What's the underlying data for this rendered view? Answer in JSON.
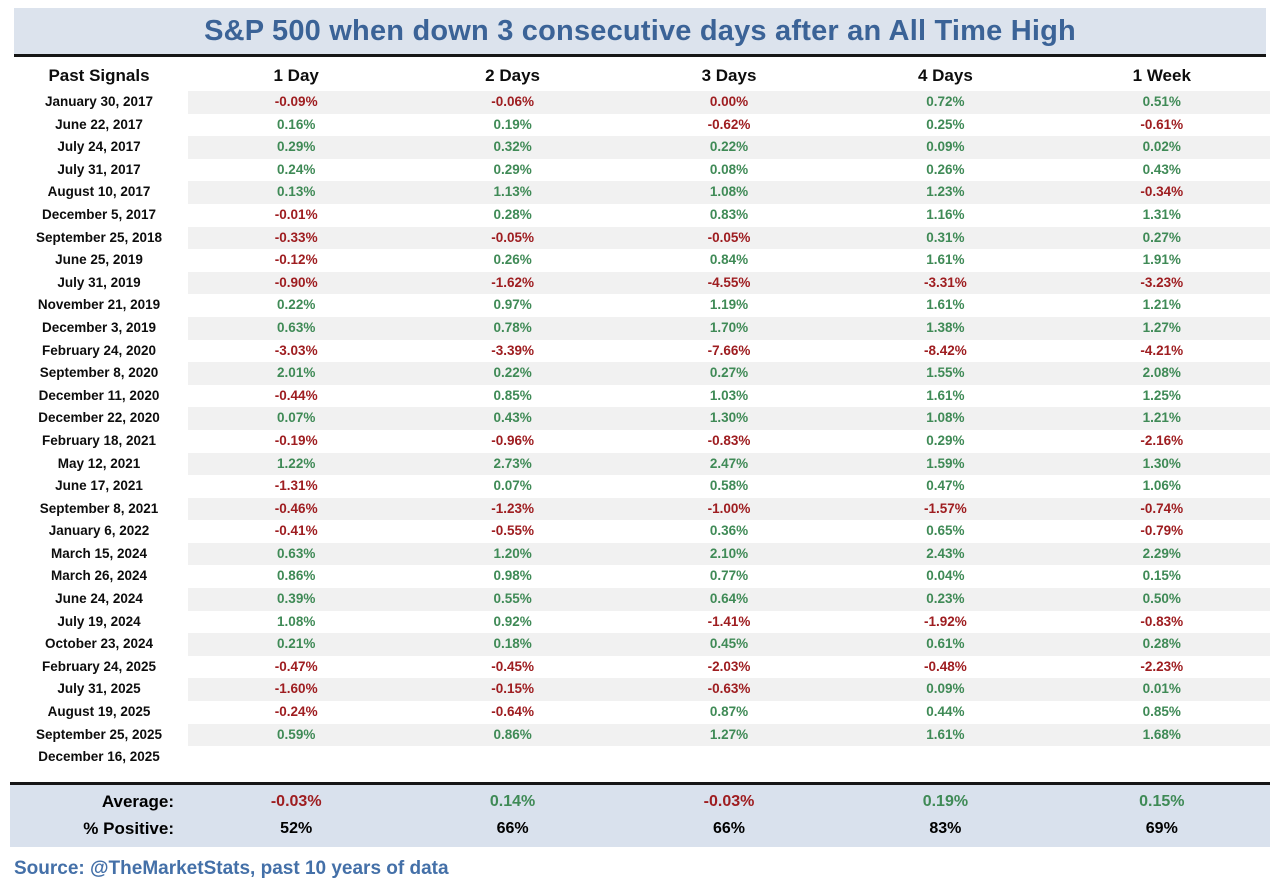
{
  "title": "S&P 500 when down 3 consecutive days after an All Time High",
  "source": "Source: @TheMarketStats, past 10 years of data",
  "colors": {
    "title_text": "#3b6397",
    "title_bg": "#dce3ed",
    "positive_green": "#3f8a56",
    "negative_red": "#9e1d20",
    "row_stripe": "#f1f1f1",
    "summary_bg": "#d9e1ed",
    "source_blue": "#4470a8"
  },
  "chart_data": {
    "type": "table",
    "columns": [
      "Past Signals",
      "1 Day",
      "2 Days",
      "3 Days",
      "4 Days",
      "1 Week"
    ],
    "rows": [
      {
        "date": "January 30, 2017",
        "values": [
          "-0.09%",
          "-0.06%",
          "0.00%",
          "0.72%",
          "0.51%"
        ]
      },
      {
        "date": "June 22, 2017",
        "values": [
          "0.16%",
          "0.19%",
          "-0.62%",
          "0.25%",
          "-0.61%"
        ]
      },
      {
        "date": "July 24, 2017",
        "values": [
          "0.29%",
          "0.32%",
          "0.22%",
          "0.09%",
          "0.02%"
        ]
      },
      {
        "date": "July 31, 2017",
        "values": [
          "0.24%",
          "0.29%",
          "0.08%",
          "0.26%",
          "0.43%"
        ]
      },
      {
        "date": "August 10, 2017",
        "values": [
          "0.13%",
          "1.13%",
          "1.08%",
          "1.23%",
          "-0.34%"
        ]
      },
      {
        "date": "December 5, 2017",
        "values": [
          "-0.01%",
          "0.28%",
          "0.83%",
          "1.16%",
          "1.31%"
        ]
      },
      {
        "date": "September 25, 2018",
        "values": [
          "-0.33%",
          "-0.05%",
          "-0.05%",
          "0.31%",
          "0.27%"
        ]
      },
      {
        "date": "June 25, 2019",
        "values": [
          "-0.12%",
          "0.26%",
          "0.84%",
          "1.61%",
          "1.91%"
        ]
      },
      {
        "date": "July 31, 2019",
        "values": [
          "-0.90%",
          "-1.62%",
          "-4.55%",
          "-3.31%",
          "-3.23%"
        ]
      },
      {
        "date": "November 21, 2019",
        "values": [
          "0.22%",
          "0.97%",
          "1.19%",
          "1.61%",
          "1.21%"
        ]
      },
      {
        "date": "December 3, 2019",
        "values": [
          "0.63%",
          "0.78%",
          "1.70%",
          "1.38%",
          "1.27%"
        ]
      },
      {
        "date": "February 24, 2020",
        "values": [
          "-3.03%",
          "-3.39%",
          "-7.66%",
          "-8.42%",
          "-4.21%"
        ]
      },
      {
        "date": "September 8, 2020",
        "values": [
          "2.01%",
          "0.22%",
          "0.27%",
          "1.55%",
          "2.08%"
        ]
      },
      {
        "date": "December 11, 2020",
        "values": [
          "-0.44%",
          "0.85%",
          "1.03%",
          "1.61%",
          "1.25%"
        ]
      },
      {
        "date": "December 22, 2020",
        "values": [
          "0.07%",
          "0.43%",
          "1.30%",
          "1.08%",
          "1.21%"
        ]
      },
      {
        "date": "February 18, 2021",
        "values": [
          "-0.19%",
          "-0.96%",
          "-0.83%",
          "0.29%",
          "-2.16%"
        ]
      },
      {
        "date": "May 12, 2021",
        "values": [
          "1.22%",
          "2.73%",
          "2.47%",
          "1.59%",
          "1.30%"
        ]
      },
      {
        "date": "June 17, 2021",
        "values": [
          "-1.31%",
          "0.07%",
          "0.58%",
          "0.47%",
          "1.06%"
        ]
      },
      {
        "date": "September 8, 2021",
        "values": [
          "-0.46%",
          "-1.23%",
          "-1.00%",
          "-1.57%",
          "-0.74%"
        ]
      },
      {
        "date": "January 6, 2022",
        "values": [
          "-0.41%",
          "-0.55%",
          "0.36%",
          "0.65%",
          "-0.79%"
        ]
      },
      {
        "date": "March 15, 2024",
        "values": [
          "0.63%",
          "1.20%",
          "2.10%",
          "2.43%",
          "2.29%"
        ]
      },
      {
        "date": "March 26, 2024",
        "values": [
          "0.86%",
          "0.98%",
          "0.77%",
          "0.04%",
          "0.15%"
        ]
      },
      {
        "date": "June 24, 2024",
        "values": [
          "0.39%",
          "0.55%",
          "0.64%",
          "0.23%",
          "0.50%"
        ]
      },
      {
        "date": "July 19, 2024",
        "values": [
          "1.08%",
          "0.92%",
          "-1.41%",
          "-1.92%",
          "-0.83%"
        ]
      },
      {
        "date": "October 23, 2024",
        "values": [
          "0.21%",
          "0.18%",
          "0.45%",
          "0.61%",
          "0.28%"
        ]
      },
      {
        "date": "February 24, 2025",
        "values": [
          "-0.47%",
          "-0.45%",
          "-2.03%",
          "-0.48%",
          "-2.23%"
        ]
      },
      {
        "date": "July 31, 2025",
        "values": [
          "-1.60%",
          "-0.15%",
          "-0.63%",
          "0.09%",
          "0.01%"
        ]
      },
      {
        "date": "August 19, 2025",
        "values": [
          "-0.24%",
          "-0.64%",
          "0.87%",
          "0.44%",
          "0.85%"
        ]
      },
      {
        "date": "September 25, 2025",
        "values": [
          "0.59%",
          "0.86%",
          "1.27%",
          "1.61%",
          "1.68%"
        ]
      },
      {
        "date": "December 16, 2025",
        "values": [
          "",
          "",
          "",
          "",
          ""
        ]
      }
    ],
    "summary": [
      {
        "label": "Average:",
        "values": [
          "-0.03%",
          "0.14%",
          "-0.03%",
          "0.19%",
          "0.15%"
        ],
        "colored": true
      },
      {
        "label": "% Positive:",
        "values": [
          "52%",
          "66%",
          "66%",
          "83%",
          "69%"
        ],
        "colored": false
      }
    ]
  }
}
